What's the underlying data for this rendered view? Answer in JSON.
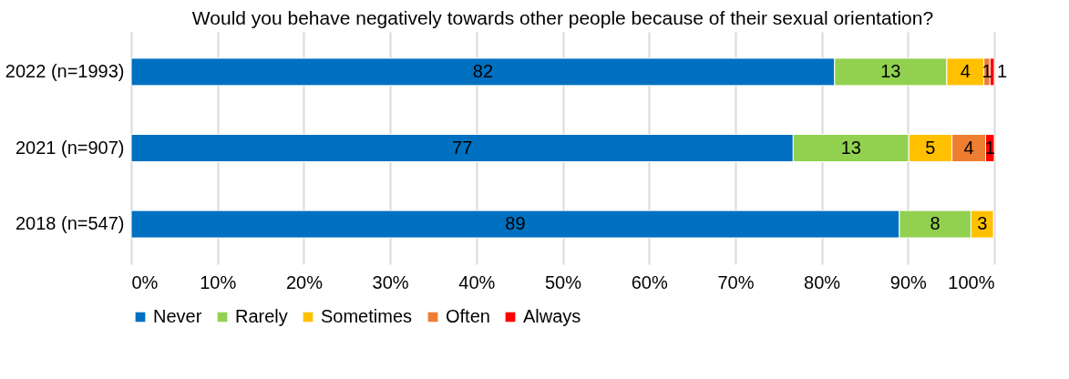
{
  "chart_data": {
    "type": "bar",
    "orientation": "horizontal",
    "stacked": true,
    "title": "Would you behave negatively towards other people because of their sexual orientation?",
    "categories": [
      "2022 (n=1993)",
      "2021 (n=907)",
      "2018 (n=547)"
    ],
    "series": [
      {
        "name": "Never",
        "color": "#0070c0",
        "values": [
          81.5,
          76.7,
          89.0
        ],
        "value_labels": [
          "82",
          "77",
          "89"
        ]
      },
      {
        "name": "Rarely",
        "color": "#92d050",
        "values": [
          13.0,
          13.4,
          8.3
        ],
        "value_labels": [
          "13",
          "13",
          "8"
        ]
      },
      {
        "name": "Sometimes",
        "color": "#ffc000",
        "values": [
          4.3,
          5.0,
          2.6
        ],
        "value_labels": [
          "4",
          "5",
          "3"
        ]
      },
      {
        "name": "Often",
        "color": "#ed7d31",
        "values": [
          0.7,
          3.9,
          null
        ],
        "value_labels": [
          "1",
          "4",
          null
        ]
      },
      {
        "name": "Always",
        "color": "#ff0000",
        "values": [
          0.5,
          1.0,
          null
        ],
        "value_labels": [
          "1",
          "1",
          null
        ]
      }
    ],
    "xlim": [
      0,
      100
    ],
    "xticks": [
      {
        "value": 0,
        "label": "0%"
      },
      {
        "value": 10,
        "label": "10%"
      },
      {
        "value": 20,
        "label": "20%"
      },
      {
        "value": 30,
        "label": "30%"
      },
      {
        "value": 40,
        "label": "40%"
      },
      {
        "value": 50,
        "label": "50%"
      },
      {
        "value": 60,
        "label": "60%"
      },
      {
        "value": 70,
        "label": "70%"
      },
      {
        "value": 80,
        "label": "80%"
      },
      {
        "value": 90,
        "label": "90%"
      },
      {
        "value": 100,
        "label": "100%"
      }
    ],
    "grid": "x",
    "legend": "bottom"
  }
}
